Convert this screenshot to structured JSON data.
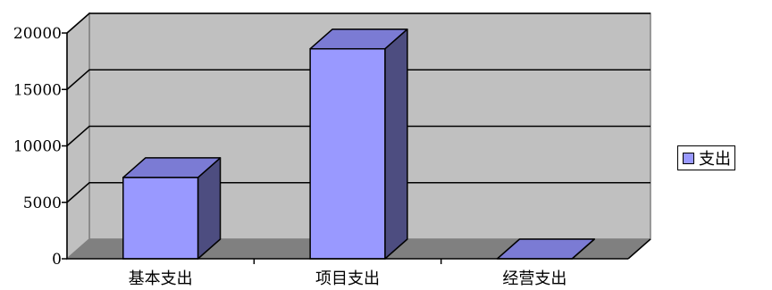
{
  "chart_data": {
    "type": "bar",
    "categories": [
      "基本支出",
      "项目支出",
      "经营支出"
    ],
    "series": [
      {
        "name": "支出",
        "values": [
          7200,
          18600,
          0
        ]
      }
    ],
    "ylim": [
      0,
      20000
    ],
    "yticks": [
      "0",
      "5000",
      "10000",
      "15000",
      "20000"
    ],
    "grid": true,
    "legend": "right",
    "colors": {
      "bar_front": "#9999ff",
      "bar_top": "#7b7bd4",
      "bar_side": "#4d4d80",
      "wall": "#c0c0c0",
      "floor": "#808080"
    }
  }
}
